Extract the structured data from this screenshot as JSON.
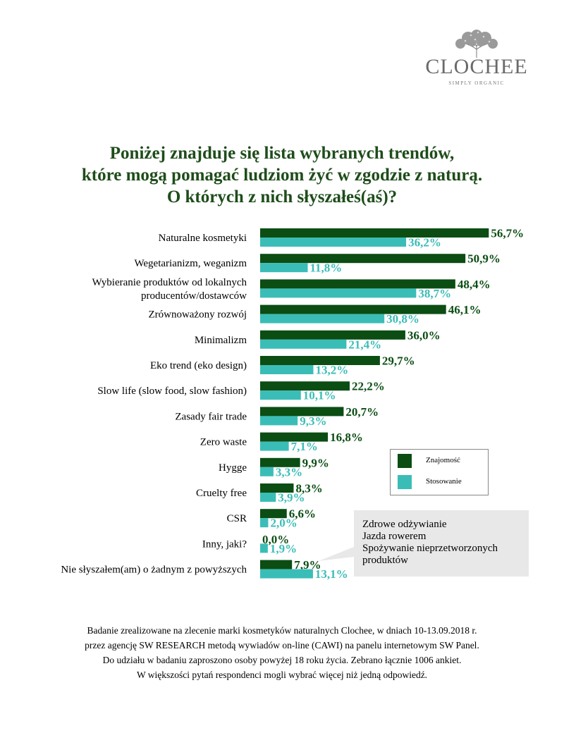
{
  "brand": {
    "name": "CLOCHEE",
    "tagline": "SIMPLY ORGANIC",
    "colors": {
      "dark_green": "#0b4d13",
      "teal": "#3bbdb7",
      "title_green": "#1e4d1a"
    },
    "logo_icon": "tree-icon"
  },
  "title_lines": [
    "Poniżej znajduje się lista wybranych trendów,",
    "które mogą pomagać ludziom żyć w zgodzie z naturą.",
    "O których z nich słyszałeś(aś)?"
  ],
  "chart_data": {
    "type": "bar",
    "orientation": "horizontal",
    "categories": [
      "Naturalne kosmetyki",
      "Wegetarianizm, weganizm",
      "Wybieranie produktów od lokalnych producentów/dostawców",
      "Zrównoważony rozwój",
      "Minimalizm",
      "Eko trend (eko design)",
      "Slow life (slow food, slow fashion)",
      "Zasady fair trade",
      "Zero waste",
      "Hygge",
      "Cruelty free",
      "CSR",
      "Inny, jaki?",
      "Nie słyszałem(am) o żadnym z powyższych"
    ],
    "category_lines": [
      [
        "Naturalne kosmetyki"
      ],
      [
        "Wegetarianizm, weganizm"
      ],
      [
        "Wybieranie produktów od lokalnych",
        "producentów/dostawców"
      ],
      [
        "Zrównoważony rozwój"
      ],
      [
        "Minimalizm"
      ],
      [
        "Eko trend (eko design)"
      ],
      [
        "Slow life (slow food, slow fashion)"
      ],
      [
        "Zasady fair trade"
      ],
      [
        "Zero waste"
      ],
      [
        "Hygge"
      ],
      [
        "Cruelty free"
      ],
      [
        "CSR"
      ],
      [
        "Inny, jaki?"
      ],
      [
        "Nie słyszałem(am) o żadnym z powyższych"
      ]
    ],
    "series": [
      {
        "name": "Znajomość",
        "color": "#0b4d13",
        "values": [
          56.7,
          50.9,
          48.4,
          46.1,
          36.0,
          29.7,
          22.2,
          20.7,
          16.8,
          9.9,
          8.3,
          6.6,
          0.0,
          7.9
        ],
        "labels": [
          "56,7%",
          "50,9%",
          "48,4%",
          "46,1%",
          "36,0%",
          "29,7%",
          "22,2%",
          "20,7%",
          "16,8%",
          "9,9%",
          "8,3%",
          "6,6%",
          "0,0%",
          "7,9%"
        ]
      },
      {
        "name": "Stosowanie",
        "color": "#3bbdb7",
        "values": [
          36.2,
          11.8,
          38.7,
          30.8,
          21.4,
          13.2,
          10.1,
          9.3,
          7.1,
          3.3,
          3.9,
          2.0,
          1.9,
          13.1
        ],
        "labels": [
          "36,2%",
          "11,8%",
          "38,7%",
          "30,8%",
          "21,4%",
          "13,2%",
          "10,1%",
          "9,3%",
          "7,1%",
          "3,3%",
          "3,9%",
          "2,0%",
          "1,9%",
          "13,1%"
        ]
      }
    ],
    "xlim": [
      0,
      100
    ],
    "grid": false,
    "legend_position": "right"
  },
  "callout": {
    "lines": [
      "Zdrowe odżywianie",
      "Jazda rowerem",
      "Spożywanie nieprzetworzonych",
      "produktów"
    ],
    "fill": "#e8e8e8"
  },
  "footnote_lines": [
    "Badanie zrealizowane na zlecenie marki kosmetyków naturalnych Clochee, w dniach  10-13.09.2018 r.",
    "przez agencję SW RESEARCH metodą wywiadów on-line (CAWI) na panelu  internetowym SW Panel.",
    "Do udziału  w badaniu zaproszono osoby powyżej 18 roku życia. Zebrano łącznie 1006 ankiet.",
    "W większości pytań respondenci mogli wybrać więcej niż jedną odpowiedź."
  ]
}
